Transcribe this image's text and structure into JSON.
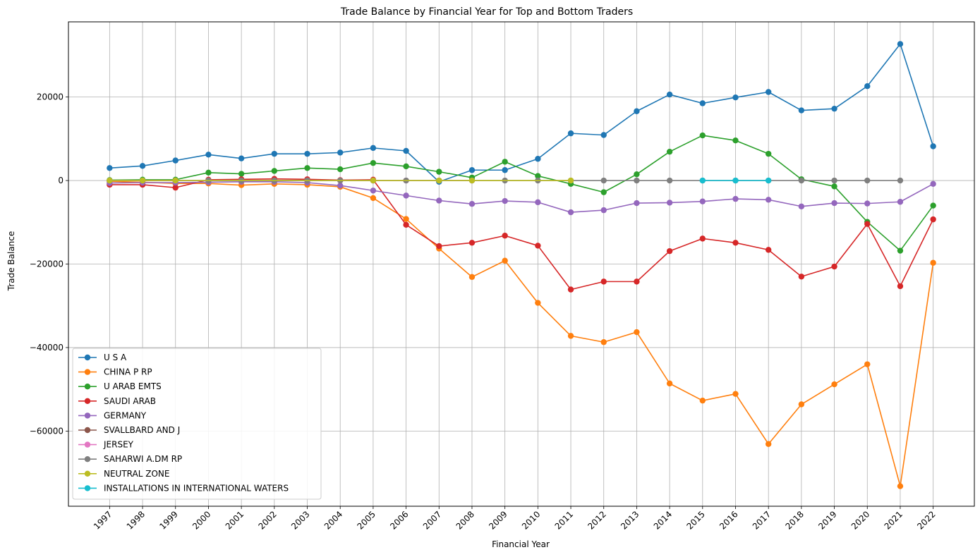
{
  "chart_data": {
    "type": "line",
    "title": "Trade Balance by Financial Year for Top and Bottom Traders",
    "xlabel": "Financial Year",
    "ylabel": "Trade Balance",
    "x": [
      1997,
      1998,
      1999,
      2000,
      2001,
      2002,
      2003,
      2004,
      2005,
      2006,
      2007,
      2008,
      2009,
      2010,
      2011,
      2012,
      2013,
      2014,
      2015,
      2016,
      2017,
      2018,
      2019,
      2020,
      2021,
      2022
    ],
    "ylim": [
      -78000,
      38000
    ],
    "yticks": [
      -60000,
      -40000,
      -20000,
      0,
      20000
    ],
    "grid": true,
    "legend_position": "lower-left",
    "series": [
      {
        "name": "U S A",
        "color": "#1f77b4",
        "x": [
          1997,
          1998,
          1999,
          2000,
          2001,
          2002,
          2003,
          2004,
          2005,
          2006,
          2007,
          2008,
          2009,
          2010,
          2011,
          2012,
          2013,
          2014,
          2015,
          2016,
          2017,
          2018,
          2019,
          2020,
          2021,
          2022
        ],
        "values": [
          3000,
          3500,
          4800,
          6200,
          5300,
          6400,
          6400,
          6700,
          7800,
          7100,
          -300,
          2500,
          2500,
          5200,
          11300,
          10900,
          16600,
          20600,
          18500,
          19900,
          21200,
          16800,
          17200,
          22600,
          32700,
          8200
        ]
      },
      {
        "name": "CHINA P RP",
        "color": "#ff7f0e",
        "x": [
          1997,
          1998,
          1999,
          2000,
          2001,
          2002,
          2003,
          2004,
          2005,
          2006,
          2007,
          2008,
          2009,
          2010,
          2011,
          2012,
          2013,
          2014,
          2015,
          2016,
          2017,
          2018,
          2019,
          2020,
          2021,
          2022
        ],
        "values": [
          -200,
          -400,
          -700,
          -700,
          -1100,
          -800,
          -1000,
          -1500,
          -4200,
          -9200,
          -16300,
          -23100,
          -19200,
          -29300,
          -37200,
          -38700,
          -36300,
          -48600,
          -52700,
          -51100,
          -63100,
          -53600,
          -48800,
          -44000,
          -73200,
          -19700
        ]
      },
      {
        "name": "U ARAB EMTS",
        "color": "#2ca02c",
        "x": [
          1997,
          1998,
          1999,
          2000,
          2001,
          2002,
          2003,
          2004,
          2005,
          2006,
          2007,
          2008,
          2009,
          2010,
          2011,
          2012,
          2013,
          2014,
          2015,
          2016,
          2017,
          2018,
          2019,
          2020,
          2021,
          2022
        ],
        "values": [
          100,
          200,
          200,
          1900,
          1600,
          2300,
          3000,
          2700,
          4200,
          3400,
          2100,
          700,
          4500,
          1100,
          -800,
          -2800,
          1500,
          6900,
          10800,
          9600,
          6400,
          300,
          -1400,
          -9900,
          -16800,
          -6000
        ]
      },
      {
        "name": "SAUDI ARAB",
        "color": "#d62728",
        "x": [
          1997,
          1998,
          1999,
          2000,
          2001,
          2002,
          2003,
          2004,
          2005,
          2006,
          2007,
          2008,
          2009,
          2010,
          2011,
          2012,
          2013,
          2014,
          2015,
          2016,
          2017,
          2018,
          2019,
          2020,
          2021,
          2022
        ],
        "values": [
          -1000,
          -1000,
          -1700,
          200,
          300,
          400,
          300,
          100,
          200,
          -10600,
          -15700,
          -14900,
          -13200,
          -15600,
          -26100,
          -24200,
          -24200,
          -16900,
          -13900,
          -14900,
          -16600,
          -23000,
          -20600,
          -10400,
          -25300,
          -9300
        ]
      },
      {
        "name": "GERMANY",
        "color": "#9467bd",
        "x": [
          1997,
          1998,
          1999,
          2000,
          2001,
          2002,
          2003,
          2004,
          2005,
          2006,
          2007,
          2008,
          2009,
          2010,
          2011,
          2012,
          2013,
          2014,
          2015,
          2016,
          2017,
          2018,
          2019,
          2020,
          2021,
          2022
        ],
        "values": [
          -600,
          -500,
          -500,
          -400,
          -300,
          -300,
          -500,
          -1200,
          -2400,
          -3600,
          -4800,
          -5600,
          -4900,
          -5200,
          -7600,
          -7100,
          -5400,
          -5300,
          -5000,
          -4400,
          -4600,
          -6200,
          -5400,
          -5500,
          -5100,
          -800
        ]
      },
      {
        "name": "SVALLBARD AND J",
        "color": "#8c564b",
        "x": [
          2000,
          2001,
          2002,
          2003,
          2004,
          2005
        ],
        "values": [
          0,
          0,
          0,
          0,
          0,
          0
        ]
      },
      {
        "name": "JERSEY",
        "color": "#e377c2",
        "x": [
          1997,
          1998,
          1999,
          2000,
          2001,
          2002,
          2003,
          2004,
          2005,
          2006,
          2007,
          2008
        ],
        "values": [
          0,
          0,
          0,
          0,
          0,
          0,
          0,
          0,
          0,
          0,
          0,
          0
        ]
      },
      {
        "name": "SAHARWI A.DM RP",
        "color": "#7f7f7f",
        "x": [
          1997,
          1998,
          1999,
          2000,
          2001,
          2002,
          2003,
          2004,
          2005,
          2006,
          2007,
          2008,
          2009,
          2010,
          2011,
          2012,
          2013,
          2014,
          2015,
          2016,
          2017,
          2018,
          2019,
          2020,
          2021
        ],
        "values": [
          0,
          0,
          0,
          0,
          0,
          0,
          0,
          0,
          0,
          0,
          0,
          0,
          0,
          0,
          0,
          0,
          0,
          0,
          0,
          0,
          0,
          0,
          0,
          0,
          0
        ]
      },
      {
        "name": "NEUTRAL ZONE",
        "color": "#bcbd22",
        "x": [
          1997,
          1998,
          1999,
          2005,
          2007,
          2008,
          2011
        ],
        "values": [
          0,
          0,
          0,
          0,
          0,
          0,
          0
        ]
      },
      {
        "name": "INSTALLATIONS IN INTERNATIONAL WATERS",
        "color": "#17becf",
        "x": [
          2015,
          2016,
          2017
        ],
        "values": [
          0,
          0,
          0
        ]
      }
    ]
  }
}
